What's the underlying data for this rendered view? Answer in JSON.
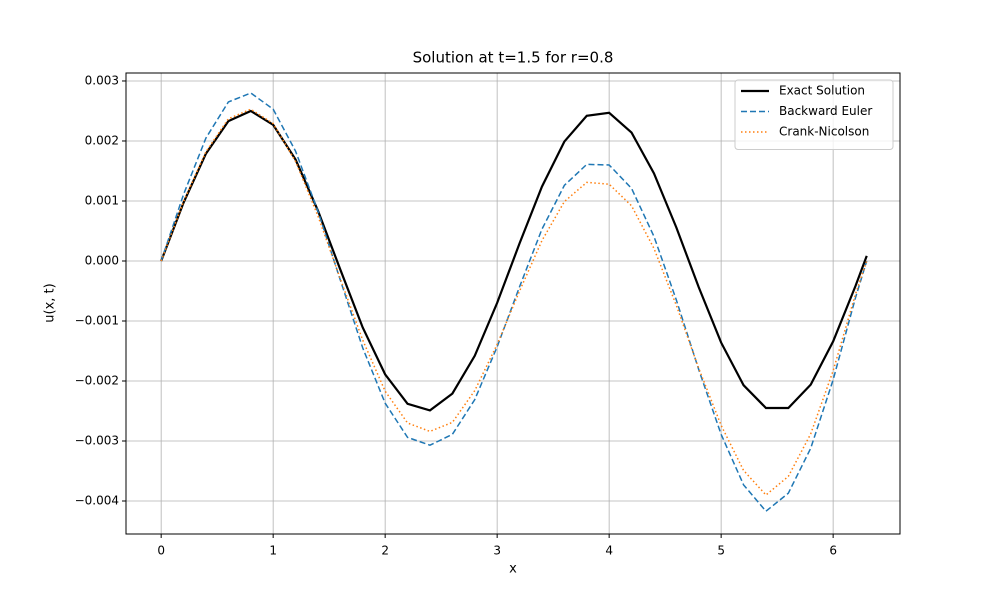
{
  "chart_data": {
    "type": "line",
    "title": "Solution at t=1.5 for r=0.8",
    "x_label": "x",
    "y_label": "u(x, t)",
    "x": [
      0,
      0.2,
      0.4,
      0.6,
      0.8,
      1.0,
      1.2,
      1.4,
      1.6,
      1.8,
      2.0,
      2.2,
      2.4,
      2.6,
      2.8,
      3.0,
      3.2,
      3.4,
      3.6,
      3.8,
      4.0,
      4.2,
      4.4,
      4.6,
      4.8,
      5.0,
      5.2,
      5.4,
      5.6,
      5.8,
      6.0,
      6.2,
      6.3
    ],
    "series": [
      {
        "name": "Exact Solution",
        "color": "#000000",
        "dash": "solid",
        "width": 2.2,
        "values": [
          0,
          0.000973,
          0.00179,
          0.00233,
          0.0025,
          0.00227,
          0.00169,
          0.000838,
          -0.000145,
          -0.00111,
          -0.00189,
          -0.00238,
          -0.00249,
          -0.00221,
          -0.00158,
          -0.000698,
          0.000293,
          0.00124,
          0.00199,
          0.00242,
          0.00247,
          0.00214,
          0.00146,
          0.000558,
          -0.000438,
          -0.00136,
          -0.00207,
          -0.00245,
          -0.00245,
          -0.00206,
          -0.00134,
          -0.000415,
          8.5e-05
        ]
      },
      {
        "name": "Backward Euler",
        "color": "#1f77b4",
        "dash": "dashed",
        "width": 1.5,
        "values": [
          0,
          0.00111,
          0.00205,
          0.00265,
          0.0028,
          0.00253,
          0.00183,
          0.00083,
          -0.00032,
          -0.00145,
          -0.00237,
          -0.00294,
          -0.00307,
          -0.00289,
          -0.00231,
          -0.00143,
          -0.00043,
          0.00053,
          0.00126,
          0.00161,
          0.0016,
          0.00121,
          0.00041,
          -0.00065,
          -0.00181,
          -0.00289,
          -0.00373,
          -0.00417,
          -0.00387,
          -0.00312,
          -0.00198,
          -0.00061,
          0
        ]
      },
      {
        "name": "Crank-Nicolson",
        "color": "#ff7f0e",
        "dash": "dotted",
        "width": 1.5,
        "values": [
          0,
          0.00099,
          0.00182,
          0.00237,
          0.00253,
          0.00229,
          0.00166,
          0.00075,
          -0.0003,
          -0.00132,
          -0.00217,
          -0.0027,
          -0.00284,
          -0.00269,
          -0.00216,
          -0.00139,
          -0.0005,
          0.00034,
          0.00099,
          0.00131,
          0.00128,
          0.00092,
          0.00021,
          -0.00074,
          -0.00179,
          -0.00274,
          -0.00349,
          -0.0039,
          -0.00359,
          -0.00288,
          -0.00183,
          -0.00055,
          0
        ]
      }
    ],
    "xlim": [
      -0.314,
      6.597
    ],
    "ylim": [
      -0.00455,
      0.003133
    ],
    "xticks": [
      0,
      1,
      2,
      3,
      4,
      5,
      6
    ],
    "yticks": [
      {
        "value": -0.004,
        "label": "−0.004"
      },
      {
        "value": -0.003,
        "label": "−0.003"
      },
      {
        "value": -0.002,
        "label": "−0.002"
      },
      {
        "value": -0.001,
        "label": "−0.001"
      },
      {
        "value": 0,
        "label": "0.000"
      },
      {
        "value": 0.001,
        "label": "0.001"
      },
      {
        "value": 0.002,
        "label": "0.002"
      },
      {
        "value": 0.003,
        "label": "0.003"
      }
    ],
    "grid": true,
    "legend": "upper-right"
  }
}
